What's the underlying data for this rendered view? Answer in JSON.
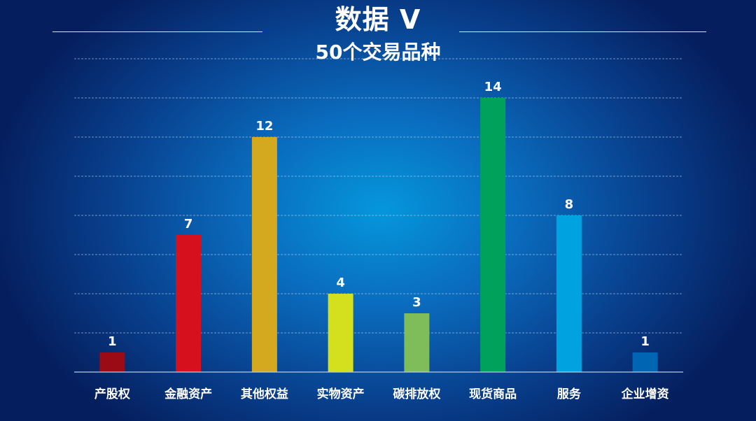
{
  "header": {
    "title": "数据 Ⅴ",
    "subtitle": "50个交易品种"
  },
  "chart_data": {
    "type": "bar",
    "categories": [
      "产股权",
      "金融资产",
      "其他权益",
      "实物资产",
      "碳排放权",
      "现货商品",
      "服务",
      "企业增资"
    ],
    "values": [
      1,
      7,
      12,
      4,
      3,
      14,
      8,
      1
    ],
    "colors": [
      "#9b0b16",
      "#d6101c",
      "#d4a91f",
      "#d4e01e",
      "#7fbc5a",
      "#00a15a",
      "#00a3e0",
      "#0065b3"
    ],
    "ylim": [
      0,
      16
    ],
    "grid": true,
    "legend": "none"
  }
}
